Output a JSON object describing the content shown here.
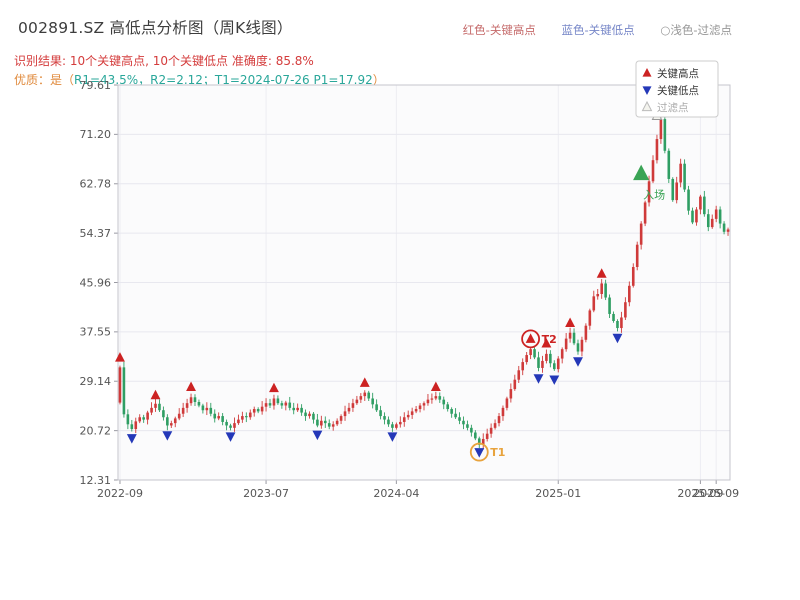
{
  "header": {
    "title": "002891.SZ 高低点分析图（周K线图）",
    "result_line": "识别结果: 10个关键高点, 10个关键低点  准确度: 85.8%",
    "quality_prefix": "优质：是（",
    "quality_value": "R1=43.5%，R2=2.12；T1=2024-07-26 P1=17.92",
    "quality_suffix": "）",
    "legend": [
      {
        "label": "红色-关键高点",
        "color": "#c56a6a"
      },
      {
        "label": "蓝色-关键低点",
        "color": "#7787c8"
      },
      {
        "label": "○浅色-过滤点",
        "color": "#979797"
      }
    ]
  },
  "chart_data": {
    "type": "candlestick",
    "title": "002891.SZ 高低点分析图（周K线图）",
    "symbol": "002891.SZ",
    "period": "weekly",
    "y_ticks": [
      79.61,
      71.2,
      62.78,
      54.37,
      45.96,
      37.55,
      29.14,
      20.72,
      12.31
    ],
    "x_ticks": [
      {
        "label": "2022-09",
        "i": 0
      },
      {
        "label": "2023-07",
        "i": 37
      },
      {
        "label": "2024-04",
        "i": 70
      },
      {
        "label": "2025-01",
        "i": 111
      },
      {
        "label": "2025-09",
        "i": 147
      },
      {
        "label": "2025-09",
        "i": 151
      }
    ],
    "first_open": 25.5,
    "closes": [
      31.5,
      23.5,
      21.8,
      21.0,
      22.3,
      23.0,
      22.6,
      23.8,
      24.6,
      25.3,
      24.2,
      23.0,
      21.6,
      22.0,
      22.8,
      23.6,
      24.6,
      25.4,
      26.4,
      25.6,
      25.0,
      24.2,
      24.6,
      23.6,
      22.8,
      23.2,
      22.2,
      21.6,
      21.2,
      22.0,
      22.6,
      23.2,
      23.0,
      23.8,
      24.4,
      24.0,
      24.8,
      25.4,
      25.0,
      26.2,
      25.4,
      25.0,
      25.5,
      24.6,
      24.2,
      24.6,
      23.8,
      23.2,
      23.6,
      22.6,
      21.6,
      22.4,
      22.0,
      21.4,
      21.8,
      22.4,
      23.2,
      24.0,
      24.6,
      25.4,
      26.0,
      26.6,
      27.2,
      26.2,
      25.2,
      24.2,
      23.2,
      22.6,
      21.8,
      21.2,
      21.8,
      22.2,
      23.0,
      23.4,
      24.0,
      24.4,
      25.0,
      25.4,
      26.0,
      26.2,
      26.6,
      26.0,
      25.2,
      24.4,
      23.6,
      23.0,
      22.4,
      21.8,
      21.2,
      20.4,
      19.4,
      18.3,
      19.3,
      20.2,
      21.2,
      22.0,
      23.2,
      24.6,
      26.2,
      27.8,
      29.4,
      31.0,
      32.4,
      33.6,
      34.6,
      33.2,
      31.4,
      32.6,
      33.8,
      32.2,
      31.2,
      33.0,
      34.6,
      36.4,
      37.4,
      35.6,
      34.2,
      36.2,
      38.6,
      41.2,
      43.6,
      44.0,
      45.8,
      43.4,
      40.6,
      39.4,
      38.2,
      40.0,
      42.6,
      45.4,
      48.6,
      52.4,
      56.0,
      59.6,
      63.2,
      66.8,
      70.4,
      73.8,
      68.4,
      63.6,
      60.0,
      63.0,
      66.2,
      61.8,
      58.2,
      56.2,
      58.4,
      60.6,
      57.6,
      55.4,
      56.8,
      58.4,
      56.0,
      54.6,
      55.0
    ],
    "key_highs": [
      {
        "i": 0,
        "price": 32.3
      },
      {
        "i": 9,
        "price": 25.9
      },
      {
        "i": 18,
        "price": 27.3
      },
      {
        "i": 39,
        "price": 27.1
      },
      {
        "i": 62,
        "price": 28.0
      },
      {
        "i": 80,
        "price": 27.3
      },
      {
        "i": 104,
        "price": 35.5
      },
      {
        "i": 108,
        "price": 34.7
      },
      {
        "i": 114,
        "price": 38.2
      },
      {
        "i": 122,
        "price": 46.6
      }
    ],
    "key_lows": [
      {
        "i": 3,
        "price": 20.3
      },
      {
        "i": 12,
        "price": 20.8
      },
      {
        "i": 28,
        "price": 20.6
      },
      {
        "i": 50,
        "price": 20.9
      },
      {
        "i": 69,
        "price": 20.6
      },
      {
        "i": 91,
        "price": 17.92
      },
      {
        "i": 106,
        "price": 30.5
      },
      {
        "i": 110,
        "price": 30.3
      },
      {
        "i": 116,
        "price": 33.4
      },
      {
        "i": 126,
        "price": 37.4
      }
    ],
    "filtered_points": [
      {
        "i": 136,
        "price": 73.5
      },
      {
        "i": 137,
        "price": 76.0
      }
    ],
    "annotations": [
      {
        "i": 91,
        "price": 17.92,
        "label": "T1",
        "kind": "low",
        "color": "#e8a33d"
      },
      {
        "i": 104,
        "price": 35.5,
        "label": "T2",
        "kind": "high",
        "color": "#cc2222"
      }
    ],
    "entry": {
      "i": 132,
      "price": 64.5,
      "label": "入场",
      "color": "#3aa455"
    },
    "in_chart_legend": [
      {
        "label": "关键高点",
        "marker": "up",
        "color": "#cc2222",
        "text_color": "#333333"
      },
      {
        "label": "关键低点",
        "marker": "down",
        "color": "#2438b8",
        "text_color": "#333333"
      },
      {
        "label": "过滤点",
        "marker": "light",
        "color": "#bbbbbb",
        "text_color": "#aaaaaa"
      }
    ],
    "colors": {
      "up": "#cf3a3a",
      "down": "#2f9e63",
      "high_marker": "#cc2222",
      "low_marker": "#2438b8",
      "grid": "#e8e8ef",
      "vgrid": "#ededf2",
      "axis": "#c4c4cc",
      "plot_bg": "#fbfbfc",
      "tick_text": "#555555"
    }
  }
}
